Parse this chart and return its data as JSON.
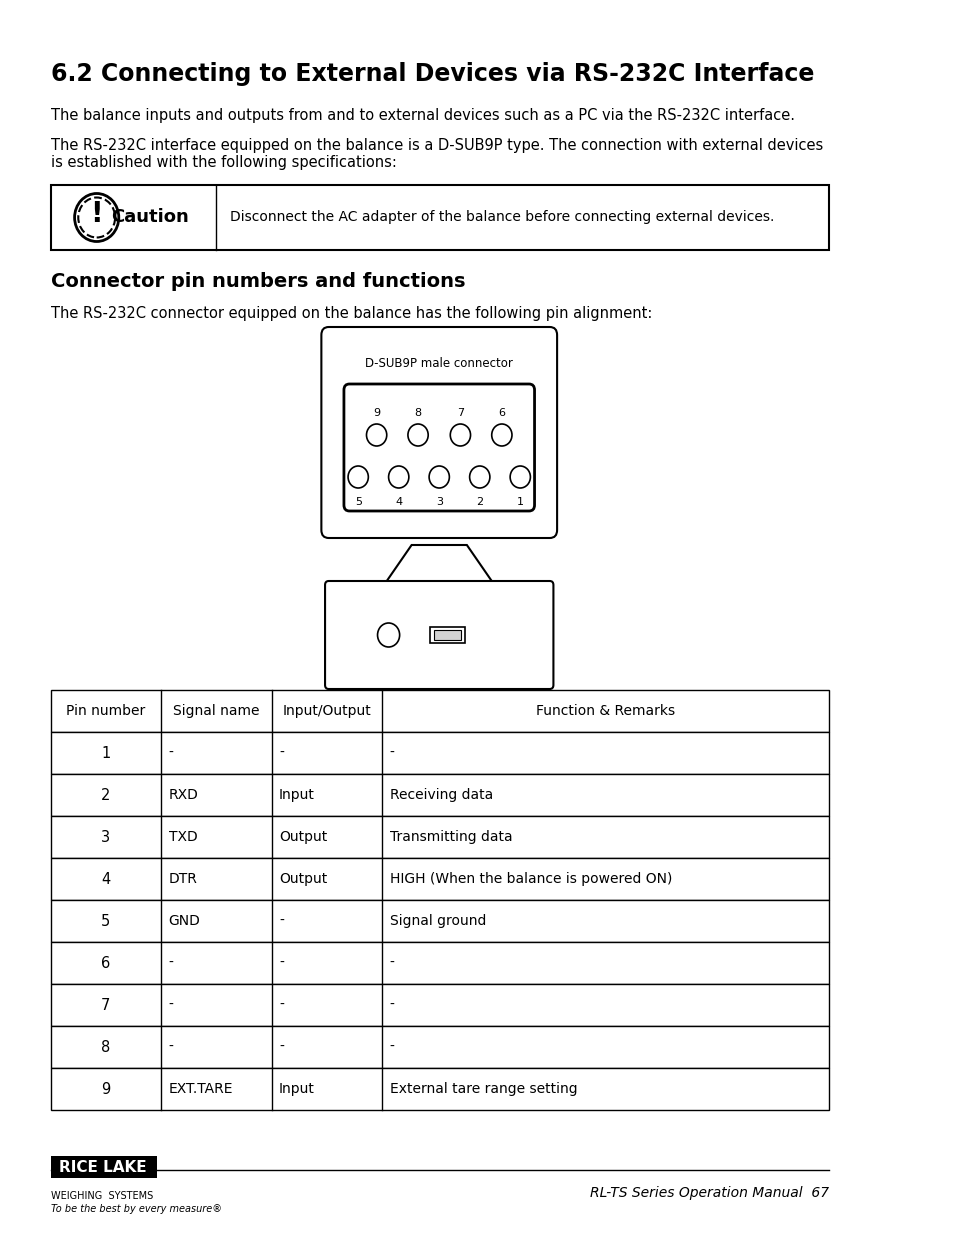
{
  "title": "6.2 Connecting to External Devices via RS-232C Interface",
  "para1": "The balance inputs and outputs from and to external devices such as a PC via the RS-232C interface.",
  "para2": "The RS-232C interface equipped on the balance is a D-SUB9P type. The connection with external devices\nis established with the following specifications:",
  "caution_text": "Disconnect the AC adapter of the balance before connecting external devices.",
  "section2_title": "Connector pin numbers and functions",
  "para3": "The RS-232C connector equipped on the balance has the following pin alignment:",
  "connector_label": "D-SUB9P male connector",
  "top_pins": [
    "9",
    "8",
    "7",
    "6"
  ],
  "bottom_pins": [
    "5",
    "4",
    "3",
    "2",
    "1"
  ],
  "table_headers": [
    "Pin number",
    "Signal name",
    "Input/Output",
    "Function & Remarks"
  ],
  "table_rows": [
    [
      "1",
      "-",
      "-",
      "-"
    ],
    [
      "2",
      "RXD",
      "Input",
      "Receiving data"
    ],
    [
      "3",
      "TXD",
      "Output",
      "Transmitting data"
    ],
    [
      "4",
      "DTR",
      "Output",
      "HIGH (When the balance is powered ON)"
    ],
    [
      "5",
      "GND",
      "-",
      "Signal ground"
    ],
    [
      "6",
      "-",
      "-",
      "-"
    ],
    [
      "7",
      "-",
      "-",
      "-"
    ],
    [
      "8",
      "-",
      "-",
      "-"
    ],
    [
      "9",
      "EXT.TARE",
      "Input",
      "External tare range setting"
    ]
  ],
  "footer_right": "RL-TS Series Operation Manual  67",
  "bg_color": "#ffffff",
  "text_color": "#000000"
}
